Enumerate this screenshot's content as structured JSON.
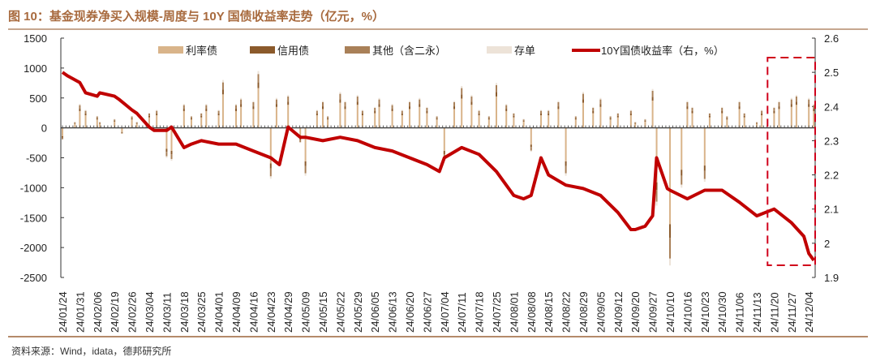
{
  "chart_data": {
    "type": "bar+line",
    "title": "图 10：基金现券净买入规模-周度与 10Y 国债收益率走势（亿元，%）",
    "source": "资料来源：Wind，idata，德邦研究所",
    "ylim_left": [
      -2500,
      1500
    ],
    "yticks_left": [
      "1500",
      "1000",
      "500",
      "0",
      "-500",
      "-1000",
      "-1500",
      "-2000",
      "-2500"
    ],
    "ylim_right": [
      1.9,
      2.6
    ],
    "yticks_right": [
      "2.6",
      "2.5",
      "2.4",
      "2.3",
      "2.2",
      "2.1",
      "2",
      "1.9"
    ],
    "x_ticks": [
      "24/01/24",
      "24/01/31",
      "24/02/06",
      "24/02/19",
      "24/02/26",
      "24/03/04",
      "24/03/11",
      "24/03/18",
      "24/03/25",
      "24/04/01",
      "24/04/09",
      "24/04/16",
      "24/04/23",
      "24/04/29",
      "24/05/09",
      "24/05/15",
      "24/05/22",
      "24/05/29",
      "24/06/05",
      "24/06/13",
      "24/06/20",
      "24/06/27",
      "24/07/04",
      "24/07/11",
      "24/07/18",
      "24/07/25",
      "24/08/01",
      "24/08/08",
      "24/08/15",
      "24/08/22",
      "24/08/29",
      "24/09/05",
      "24/09/12",
      "24/09/20",
      "24/09/27",
      "24/10/10",
      "24/10/16",
      "24/10/23",
      "24/10/30",
      "24/11/06",
      "24/11/13",
      "24/11/20",
      "24/11/27",
      "24/12/04"
    ],
    "legend": [
      "利率债",
      "信用债",
      "其他（含二永）",
      "存单",
      "10Y国债收益率（右，%）"
    ],
    "legend_placement": "top",
    "colors": {
      "利率债": "#d9b48a",
      "信用债": "#8b5a2b",
      "其他（含二永）": "#a98058",
      "存单": "#ede3d8",
      "10Y国债收益率（右，%）": "#c00000"
    },
    "bar_dates": [
      "24/01/24",
      "24/01/29",
      "24/01/31",
      "24/02/02",
      "24/02/06",
      "24/02/08",
      "24/02/19",
      "24/02/22",
      "24/02/26",
      "24/02/28",
      "24/03/04",
      "24/03/07",
      "24/03/11",
      "24/03/13",
      "24/03/18",
      "24/03/21",
      "24/03/25",
      "24/03/27",
      "24/04/01",
      "24/04/03",
      "24/04/09",
      "24/04/11",
      "24/04/16",
      "24/04/18",
      "24/04/23",
      "24/04/25",
      "24/04/29",
      "24/05/06",
      "24/05/09",
      "24/05/13",
      "24/05/15",
      "24/05/17",
      "24/05/22",
      "24/05/24",
      "24/05/29",
      "24/05/31",
      "24/06/05",
      "24/06/07",
      "24/06/13",
      "24/06/17",
      "24/06/20",
      "24/06/24",
      "24/06/27",
      "24/07/01",
      "24/07/04",
      "24/07/08",
      "24/07/11",
      "24/07/15",
      "24/07/18",
      "24/07/22",
      "24/07/25",
      "24/07/29",
      "24/08/01",
      "24/08/05",
      "24/08/08",
      "24/08/12",
      "24/08/15",
      "24/08/19",
      "24/08/22",
      "24/08/26",
      "24/08/29",
      "24/09/02",
      "24/09/05",
      "24/09/09",
      "24/09/12",
      "24/09/18",
      "24/09/20",
      "24/09/24",
      "24/09/27",
      "24/09/30",
      "24/10/10",
      "24/10/14",
      "24/10/16",
      "24/10/18",
      "24/10/23",
      "24/10/25",
      "24/10/30",
      "24/11/01",
      "24/11/06",
      "24/11/08",
      "24/11/13",
      "24/11/15",
      "24/11/20",
      "24/11/22",
      "24/11/27",
      "24/11/29",
      "24/12/04",
      "24/12/06"
    ],
    "series": [
      {
        "name": "利率债",
        "values": [
          -140,
          70,
          280,
          210,
          140,
          70,
          105,
          -70,
          140,
          70,
          175,
          210,
          -350,
          -385,
          280,
          140,
          175,
          280,
          210,
          560,
          280,
          350,
          315,
          665,
          -595,
          350,
          385,
          -175,
          -560,
          210,
          315,
          140,
          420,
          315,
          385,
          210,
          245,
          350,
          280,
          210,
          315,
          350,
          245,
          140,
          -385,
          315,
          490,
          385,
          210,
          140,
          525,
          280,
          175,
          105,
          -280,
          210,
          210,
          315,
          -560,
          140,
          420,
          245,
          350,
          140,
          175,
          210,
          70,
          105,
          455,
          -910,
          -1610,
          -700,
          315,
          245,
          -630,
          175,
          245,
          140,
          315,
          175,
          70,
          210,
          245,
          315,
          350,
          385,
          350,
          280
        ]
      },
      {
        "name": "信用债",
        "values": [
          -20,
          10,
          40,
          30,
          20,
          10,
          15,
          -10,
          20,
          10,
          25,
          30,
          -50,
          -55,
          40,
          20,
          25,
          40,
          30,
          80,
          40,
          50,
          45,
          95,
          -85,
          50,
          55,
          -25,
          -80,
          30,
          45,
          20,
          60,
          45,
          55,
          30,
          35,
          50,
          40,
          30,
          45,
          50,
          35,
          20,
          -55,
          45,
          70,
          55,
          30,
          20,
          75,
          40,
          25,
          15,
          -40,
          30,
          30,
          45,
          -80,
          20,
          60,
          35,
          50,
          20,
          25,
          30,
          10,
          15,
          65,
          -130,
          -230,
          -100,
          45,
          35,
          -90,
          25,
          35,
          20,
          45,
          25,
          10,
          30,
          35,
          45,
          50,
          55,
          50,
          40
        ]
      },
      {
        "name": "其他（含二永）",
        "values": [
          -30,
          15,
          60,
          45,
          30,
          15,
          20,
          -15,
          30,
          15,
          40,
          45,
          -75,
          -80,
          60,
          30,
          40,
          60,
          45,
          120,
          60,
          75,
          70,
          140,
          -130,
          75,
          85,
          -40,
          -120,
          45,
          70,
          30,
          90,
          70,
          85,
          45,
          55,
          75,
          60,
          45,
          70,
          75,
          55,
          30,
          -85,
          70,
          105,
          85,
          45,
          30,
          115,
          60,
          40,
          20,
          -60,
          45,
          45,
          70,
          -120,
          30,
          90,
          55,
          75,
          30,
          40,
          45,
          15,
          20,
          100,
          -195,
          -345,
          -150,
          70,
          55,
          -135,
          40,
          55,
          30,
          70,
          40,
          15,
          45,
          55,
          70,
          75,
          85,
          75,
          60
        ]
      },
      {
        "name": "存单",
        "values": [
          -10,
          5,
          20,
          15,
          10,
          5,
          10,
          -5,
          10,
          5,
          10,
          15,
          -25,
          -30,
          20,
          10,
          10,
          20,
          15,
          40,
          20,
          25,
          20,
          50,
          -40,
          25,
          25,
          -10,
          -40,
          15,
          20,
          10,
          30,
          20,
          25,
          15,
          15,
          25,
          20,
          15,
          20,
          25,
          15,
          10,
          -25,
          20,
          35,
          25,
          15,
          10,
          35,
          20,
          10,
          10,
          -20,
          15,
          15,
          20,
          -40,
          10,
          30,
          15,
          25,
          10,
          10,
          15,
          5,
          10,
          30,
          -65,
          -115,
          -50,
          20,
          15,
          -45,
          10,
          15,
          10,
          20,
          10,
          5,
          15,
          15,
          20,
          25,
          25,
          25,
          20
        ]
      }
    ],
    "line": {
      "name": "10Y国债收益率（右，%）",
      "dates": [
        "24/01/24",
        "24/01/26",
        "24/01/31",
        "24/02/02",
        "24/02/06",
        "24/02/08",
        "24/02/19",
        "24/02/21",
        "24/02/26",
        "24/02/28",
        "24/03/04",
        "24/03/06",
        "24/03/11",
        "24/03/13",
        "24/03/18",
        "24/03/21",
        "24/03/25",
        "24/04/01",
        "24/04/09",
        "24/04/16",
        "24/04/23",
        "24/04/26",
        "24/04/29",
        "24/05/06",
        "24/05/09",
        "24/05/15",
        "24/05/22",
        "24/05/29",
        "24/06/05",
        "24/06/13",
        "24/06/20",
        "24/06/27",
        "24/07/02",
        "24/07/04",
        "24/07/11",
        "24/07/18",
        "24/07/25",
        "24/08/01",
        "24/08/05",
        "24/08/08",
        "24/08/12",
        "24/08/15",
        "24/08/22",
        "24/08/29",
        "24/09/05",
        "24/09/12",
        "24/09/18",
        "24/09/20",
        "24/09/24",
        "24/09/27",
        "24/09/30",
        "24/10/08",
        "24/10/10",
        "24/10/16",
        "24/10/23",
        "24/10/30",
        "24/11/06",
        "24/11/13",
        "24/11/20",
        "24/11/27",
        "24/12/02",
        "24/12/04",
        "24/12/06"
      ],
      "values": [
        2.5,
        2.49,
        2.47,
        2.44,
        2.43,
        2.44,
        2.43,
        2.42,
        2.39,
        2.38,
        2.34,
        2.33,
        2.33,
        2.34,
        2.28,
        2.29,
        2.3,
        2.29,
        2.29,
        2.27,
        2.25,
        2.23,
        2.34,
        2.31,
        2.31,
        2.3,
        2.31,
        2.3,
        2.28,
        2.27,
        2.25,
        2.23,
        2.21,
        2.25,
        2.28,
        2.26,
        2.21,
        2.14,
        2.13,
        2.14,
        2.25,
        2.2,
        2.17,
        2.16,
        2.14,
        2.09,
        2.04,
        2.04,
        2.05,
        2.08,
        2.25,
        2.16,
        2.155,
        2.13,
        2.155,
        2.155,
        2.12,
        2.08,
        2.1,
        2.06,
        2.02,
        1.97,
        1.95
      ]
    },
    "highlight": {
      "from": "24/11/18",
      "to": "24/12/06",
      "color": "#d0021b"
    }
  }
}
